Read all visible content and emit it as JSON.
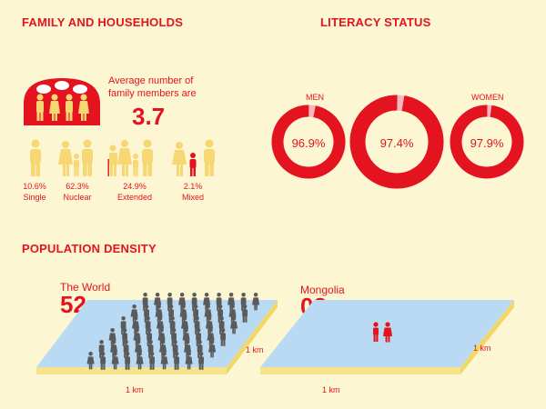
{
  "family": {
    "title": "FAMILY AND HOUSEHOLDS",
    "avg_label": "Average number of family members are",
    "avg_value": "3.7",
    "types": [
      {
        "percent": "10.6%",
        "label": "Single"
      },
      {
        "percent": "62.3%",
        "label": "Nuclear"
      },
      {
        "percent": "24.9%",
        "label": "Extended"
      },
      {
        "percent": "2.1%",
        "label": "Mixed"
      }
    ]
  },
  "literacy": {
    "title": "LITERACY STATUS",
    "men_label": "MEN",
    "women_label": "WOMEN",
    "rings": [
      {
        "value": "96.9%",
        "fraction": 0.969
      },
      {
        "value": "97.4%",
        "fraction": 0.974
      },
      {
        "value": "97.9%",
        "fraction": 0.979
      }
    ]
  },
  "density": {
    "title": "POPULATION DENSITY",
    "world": {
      "label": "The World",
      "value": "52"
    },
    "mongolia": {
      "label": "Mongolia",
      "value": "02"
    },
    "unit": "1 km"
  },
  "colors": {
    "accent": "#e3141f",
    "figure_yellow": "#f7d774",
    "figure_gray": "#5a5a5a",
    "background": "#fdf6d2",
    "plane_blue": "#b9daf2",
    "ring_light": "#f5b6bd"
  }
}
